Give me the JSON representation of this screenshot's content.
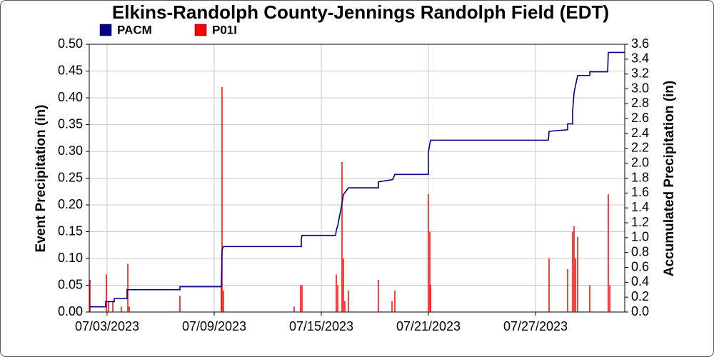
{
  "chart_data": {
    "type": "combo",
    "title": "Elkins-Randolph County-Jennings Randolph Field (EDT)",
    "ylabel": "Event Precipitation (in)",
    "y2label": "Accumulated Precipitation (in)",
    "xlim": [
      0,
      30
    ],
    "xticks": [
      {
        "value": 1,
        "label": "07/03/2023"
      },
      {
        "value": 7,
        "label": "07/09/2023"
      },
      {
        "value": 13,
        "label": "07/15/2023"
      },
      {
        "value": 19,
        "label": "07/21/2023"
      },
      {
        "value": 25,
        "label": "07/27/2023"
      }
    ],
    "ylim": [
      0,
      0.5
    ],
    "yticks": [
      {
        "value": 0,
        "label": "0.00"
      },
      {
        "value": 0.05,
        "label": "0.05"
      },
      {
        "value": 0.1,
        "label": "0.10"
      },
      {
        "value": 0.15,
        "label": "0.15"
      },
      {
        "value": 0.2,
        "label": "0.20"
      },
      {
        "value": 0.25,
        "label": "0.25"
      },
      {
        "value": 0.3,
        "label": "0.30"
      },
      {
        "value": 0.35,
        "label": "0.35"
      },
      {
        "value": 0.4,
        "label": "0.40"
      },
      {
        "value": 0.45,
        "label": "0.45"
      },
      {
        "value": 0.5,
        "label": "0.50"
      }
    ],
    "y2lim": [
      0,
      3.6
    ],
    "y2ticks": [
      {
        "value": 0,
        "label": "0.0"
      },
      {
        "value": 0.2,
        "label": "0.2"
      },
      {
        "value": 0.4,
        "label": "0.4"
      },
      {
        "value": 0.6,
        "label": "0.6"
      },
      {
        "value": 0.8,
        "label": "0.8"
      },
      {
        "value": 1,
        "label": "1.0"
      },
      {
        "value": 1.2,
        "label": "1.2"
      },
      {
        "value": 1.4,
        "label": "1.4"
      },
      {
        "value": 1.6,
        "label": "1.6"
      },
      {
        "value": 1.8,
        "label": "1.8"
      },
      {
        "value": 2,
        "label": "2.0"
      },
      {
        "value": 2.2,
        "label": "2.2"
      },
      {
        "value": 2.4,
        "label": "2.4"
      },
      {
        "value": 2.6,
        "label": "2.6"
      },
      {
        "value": 2.8,
        "label": "2.8"
      },
      {
        "value": 3,
        "label": "3.0"
      },
      {
        "value": 3.2,
        "label": "3.2"
      },
      {
        "value": 3.4,
        "label": "3.4"
      },
      {
        "value": 3.6,
        "label": "3.6"
      }
    ],
    "grid": true,
    "series": [
      {
        "name": "PACM",
        "type": "line",
        "axis": "y2",
        "color": "#00008b",
        "x": [
          0,
          0.92,
          0.92,
          1.4,
          1.4,
          2.12,
          2.12,
          5.08,
          5.08,
          7.4,
          7.44,
          7.52,
          11.88,
          11.88,
          11.92,
          13.8,
          13.84,
          13.92,
          14.16,
          14.24,
          14.52,
          16.2,
          16.2,
          17.0,
          17.12,
          19.0,
          19.0,
          19.12,
          25.72,
          25.76,
          26.8,
          26.8,
          27.08,
          27.08,
          27.16,
          27.36,
          28.04,
          28.04,
          29.04,
          29.08,
          30
        ],
        "values": [
          0.07,
          0.07,
          0.14,
          0.14,
          0.18,
          0.18,
          0.3,
          0.3,
          0.34,
          0.34,
          0.84,
          0.88,
          0.88,
          0.98,
          1.03,
          1.03,
          1.1,
          1.16,
          1.46,
          1.58,
          1.67,
          1.67,
          1.75,
          1.78,
          1.85,
          1.85,
          2.15,
          2.31,
          2.31,
          2.43,
          2.45,
          2.53,
          2.53,
          2.7,
          2.95,
          3.18,
          3.18,
          3.23,
          3.23,
          3.49,
          3.49
        ]
      },
      {
        "name": "P01I",
        "type": "bar",
        "color": "#ff0000",
        "x": [
          0.04,
          0.96,
          1.08,
          1.32,
          1.8,
          2.16,
          2.24,
          5.08,
          7.4,
          7.44,
          7.52,
          11.48,
          11.84,
          11.92,
          13.84,
          13.92,
          14.16,
          14.24,
          14.32,
          14.52,
          16.2,
          16.96,
          17.12,
          19.0,
          19.08,
          19.12,
          25.76,
          26.8,
          27.08,
          27.16,
          27.24,
          27.36,
          28.04,
          29.08,
          29.16
        ],
        "values": [
          0.06,
          0.07,
          0.02,
          0.02,
          0.01,
          0.09,
          0.01,
          0.03,
          0.05,
          0.42,
          0.04,
          0.01,
          0.05,
          0.05,
          0.07,
          0.05,
          0.28,
          0.1,
          0.02,
          0.04,
          0.06,
          0.02,
          0.04,
          0.22,
          0.15,
          0.05,
          0.1,
          0.08,
          0.15,
          0.16,
          0.1,
          0.14,
          0.05,
          0.22,
          0.05
        ]
      }
    ]
  }
}
